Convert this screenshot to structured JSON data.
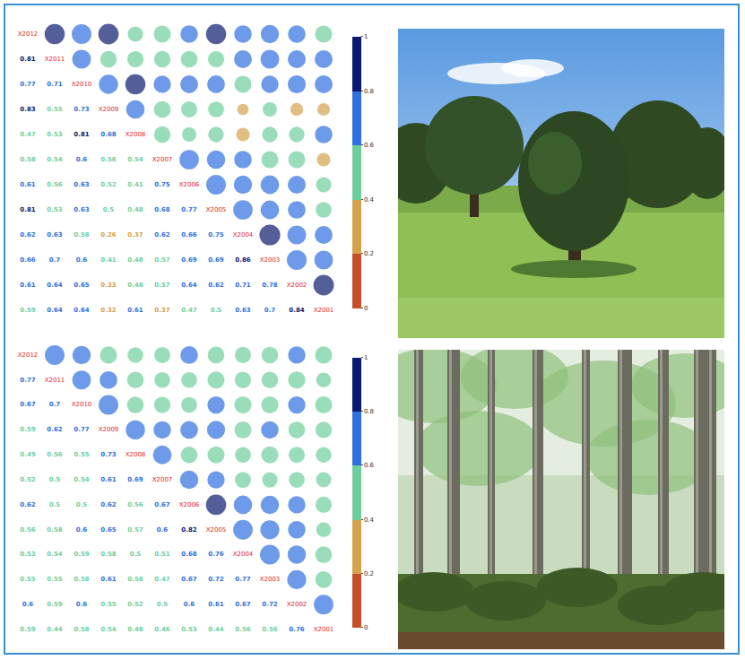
{
  "chart_data": [
    {
      "type": "heatmap",
      "variables": [
        "X2012",
        "X2011",
        "X2010",
        "X2009",
        "X2008",
        "X2007",
        "X2006",
        "X2005",
        "X2004",
        "X2003",
        "X2002",
        "X2001"
      ],
      "cells": [
        [],
        [
          0.81
        ],
        [
          0.77,
          0.71
        ],
        [
          0.83,
          0.55,
          0.73
        ],
        [
          0.47,
          0.53,
          0.81,
          0.68
        ],
        [
          0.58,
          0.54,
          0.6,
          0.56,
          0.54
        ],
        [
          0.61,
          0.56,
          0.63,
          0.52,
          0.41,
          0.75
        ],
        [
          0.81,
          0.53,
          0.63,
          0.5,
          0.48,
          0.68,
          0.77
        ],
        [
          0.62,
          0.63,
          0.58,
          0.26,
          0.37,
          0.62,
          0.66,
          0.75
        ],
        [
          0.66,
          0.7,
          0.6,
          0.41,
          0.48,
          0.57,
          0.69,
          0.69,
          0.86
        ],
        [
          0.61,
          0.64,
          0.65,
          0.33,
          0.48,
          0.57,
          0.64,
          0.62,
          0.71,
          0.78
        ],
        [
          0.59,
          0.64,
          0.64,
          0.32,
          0.61,
          0.37,
          0.47,
          0.5,
          0.63,
          0.7,
          0.84
        ]
      ],
      "colors": [
        "#c4502b",
        "#d4a24c",
        "#6fcf9c",
        "#2f6fe0",
        "#0b1a6e"
      ],
      "colorbar": {
        "range": [
          0,
          1
        ],
        "ticks": [
          0,
          0.2,
          0.4,
          0.6,
          0.8,
          1
        ]
      },
      "data_labels": true,
      "tick_labels": false
    },
    {
      "type": "heatmap",
      "variables": [
        "X2012",
        "X2011",
        "X2010",
        "X2009",
        "X2008",
        "X2007",
        "X2006",
        "X2005",
        "X2004",
        "X2003",
        "X2002",
        "X2001"
      ],
      "cells": [
        [],
        [
          0.77
        ],
        [
          0.67,
          0.7
        ],
        [
          0.59,
          0.62,
          0.77
        ],
        [
          0.49,
          0.56,
          0.55,
          0.73
        ],
        [
          0.52,
          0.5,
          0.54,
          0.61,
          0.69
        ],
        [
          0.62,
          0.5,
          0.5,
          0.62,
          0.56,
          0.67
        ],
        [
          0.56,
          0.58,
          0.6,
          0.65,
          0.57,
          0.6,
          0.82
        ],
        [
          0.53,
          0.54,
          0.59,
          0.58,
          0.5,
          0.51,
          0.68,
          0.76
        ],
        [
          0.55,
          0.55,
          0.58,
          0.61,
          0.58,
          0.47,
          0.67,
          0.72,
          0.77
        ],
        [
          0.6,
          0.59,
          0.6,
          0.55,
          0.52,
          0.5,
          0.6,
          0.61,
          0.67,
          0.72
        ],
        [
          0.59,
          0.44,
          0.58,
          0.54,
          0.48,
          0.46,
          0.53,
          0.44,
          0.56,
          0.56,
          0.76
        ]
      ],
      "colors": [
        "#c4502b",
        "#d4a24c",
        "#6fcf9c",
        "#2f6fe0",
        "#0b1a6e"
      ],
      "colorbar": {
        "range": [
          0,
          1
        ],
        "ticks": [
          0,
          0.2,
          0.4,
          0.6,
          0.8,
          1
        ]
      },
      "data_labels": true,
      "tick_labels": false
    }
  ]
}
